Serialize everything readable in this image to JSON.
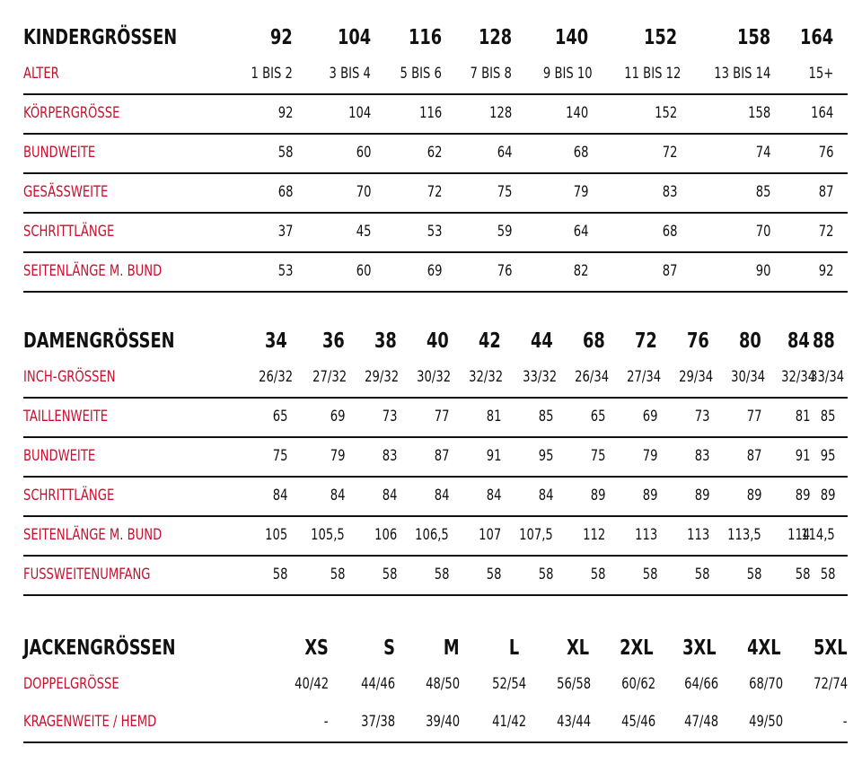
{
  "kinder": {
    "header": {
      "label": "KINDERGRÖSSEN",
      "values": [
        "92",
        "104",
        "116",
        "128",
        "140",
        "152",
        "158",
        "164"
      ]
    },
    "rows": [
      {
        "label": "ALTER",
        "values": [
          "1 BIS 2",
          "3 BIS 4",
          "5 BIS 6",
          "7 BIS 8",
          "9 BIS 10",
          "11 BIS 12",
          "13 BIS 14",
          "15+"
        ]
      },
      {
        "label": "KÖRPERGRÖSSE",
        "values": [
          "92",
          "104",
          "116",
          "128",
          "140",
          "152",
          "158",
          "164"
        ]
      },
      {
        "label": "BUNDWEITE",
        "values": [
          "58",
          "60",
          "62",
          "64",
          "68",
          "72",
          "74",
          "76"
        ]
      },
      {
        "label": "GESÄSSWEITE",
        "values": [
          "68",
          "70",
          "72",
          "75",
          "79",
          "83",
          "85",
          "87"
        ]
      },
      {
        "label": "SCHRITTLÄNGE",
        "values": [
          "37",
          "45",
          "53",
          "59",
          "64",
          "68",
          "70",
          "72"
        ]
      },
      {
        "label": "SEITENLÄNGE M. BUND",
        "values": [
          "53",
          "60",
          "69",
          "76",
          "82",
          "87",
          "90",
          "92"
        ]
      }
    ]
  },
  "damen": {
    "header": {
      "label": "DAMENGRÖSSEN",
      "values": [
        "34",
        "36",
        "38",
        "40",
        "42",
        "44",
        "68",
        "72",
        "76",
        "80",
        "84",
        "88"
      ]
    },
    "rows": [
      {
        "label": "INCH-GRÖSSEN",
        "values": [
          "26/32",
          "27/32",
          "29/32",
          "30/32",
          "32/32",
          "33/32",
          "26/34",
          "27/34",
          "29/34",
          "30/34",
          "32/34",
          "33/34"
        ]
      },
      {
        "label": "TAILLENWEITE",
        "values": [
          "65",
          "69",
          "73",
          "77",
          "81",
          "85",
          "65",
          "69",
          "73",
          "77",
          "81",
          "85"
        ]
      },
      {
        "label": "BUNDWEITE",
        "values": [
          "75",
          "79",
          "83",
          "87",
          "91",
          "95",
          "75",
          "79",
          "83",
          "87",
          "91",
          "95"
        ]
      },
      {
        "label": "SCHRITTLÄNGE",
        "values": [
          "84",
          "84",
          "84",
          "84",
          "84",
          "84",
          "89",
          "89",
          "89",
          "89",
          "89",
          "89"
        ]
      },
      {
        "label": "SEITENLÄNGE M. BUND",
        "values": [
          "105",
          "105,5",
          "106",
          "106,5",
          "107",
          "107,5",
          "112",
          "113",
          "113",
          "113,5",
          "114",
          "114,5"
        ]
      },
      {
        "label": "FUSSWEITENUMFANG",
        "values": [
          "58",
          "58",
          "58",
          "58",
          "58",
          "58",
          "58",
          "58",
          "58",
          "58",
          "58",
          "58"
        ]
      }
    ]
  },
  "jacken": {
    "header": {
      "label": "JACKENGRÖSSEN",
      "values": [
        "XS",
        "S",
        "M",
        "L",
        "XL",
        "2XL",
        "3XL",
        "4XL",
        "5XL"
      ]
    },
    "rows": [
      {
        "label": "DOPPELGRÖSSE",
        "values": [
          "40/42",
          "44/46",
          "48/50",
          "52/54",
          "56/58",
          "60/62",
          "64/66",
          "68/70",
          "72/74"
        ]
      },
      {
        "label": "KRAGENWEITE / HEMD",
        "values": [
          "-",
          "37/38",
          "39/40",
          "41/42",
          "43/44",
          "45/46",
          "47/48",
          "49/50",
          "-"
        ]
      }
    ]
  }
}
